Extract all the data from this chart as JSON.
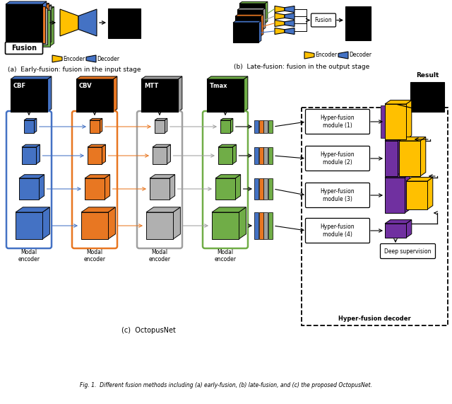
{
  "colors": {
    "blue": "#4472C4",
    "orange": "#E87722",
    "green": "#70AD47",
    "gold": "#FFC000",
    "gray": "#A0A0A0",
    "purple": "#7030A0",
    "black": "#000000",
    "white": "#FFFFFF"
  },
  "sub_a_label": "(a)  Early-fusion: fusion in the input stage",
  "sub_b_label": "(b)  Late-fusion: fusion in the output stage",
  "sub_c_label": "(c)  OctopusNet",
  "result_label": "Result",
  "encoder_label": "Encoder",
  "decoder_label": "Decoder",
  "modal_labels": [
    "CBF",
    "CBV",
    "MTT",
    "Tmax"
  ],
  "modal_encoder_label": "Modal\nencoder",
  "hyper_fusion_labels": [
    "Hyper-fusion\nmodule (1)",
    "Hyper-fusion\nmodule (2)",
    "Hyper-fusion\nmodule (3)",
    "Hyper-fusion\nmodule (4)"
  ],
  "deep_supervision_label": "Deep supervision",
  "hyper_fusion_decoder_label": "Hyper-fusion decoder",
  "caption": "Fig. 1.  Different fusion methods including (a) early-fusion, (b) late-fusion, and (c) the proposed OctopusNet."
}
